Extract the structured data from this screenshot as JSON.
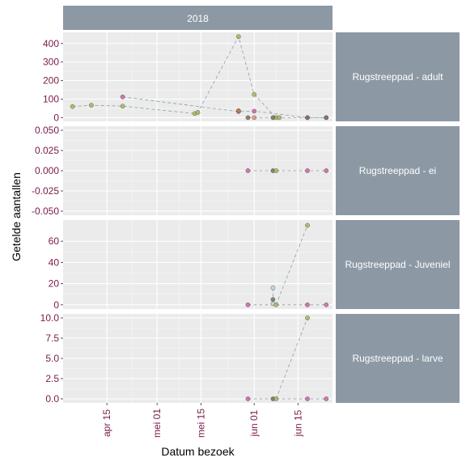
{
  "chart_data": {
    "type": "scatter",
    "facet_col_label": "2018",
    "xlabel": "Datum bezoek",
    "ylabel": "Getelde aantallen",
    "x_ticks": [
      {
        "date": "2018-04-15",
        "label": "apr 15"
      },
      {
        "date": "2018-05-01",
        "label": "mei 01"
      },
      {
        "date": "2018-05-15",
        "label": "mei 15"
      },
      {
        "date": "2018-06-01",
        "label": "jun 01"
      },
      {
        "date": "2018-06-15",
        "label": "jun 15"
      }
    ],
    "xlim": [
      "2018-04-01",
      "2018-06-26"
    ],
    "panels": [
      {
        "label": "Rugstreeppad - adult",
        "ylim": [
          -20,
          460
        ],
        "y_ticks": [
          {
            "v": 0,
            "label": "0"
          },
          {
            "v": 100,
            "label": "100"
          },
          {
            "v": 200,
            "label": "200"
          },
          {
            "v": 300,
            "label": "300"
          },
          {
            "v": 400,
            "label": "400"
          }
        ],
        "series": [
          {
            "color": "#a8b84f",
            "points": [
              [
                "2018-04-04",
                60
              ],
              [
                "2018-04-10",
                67
              ],
              [
                "2018-04-20",
                62
              ],
              [
                "2018-05-13",
                22
              ],
              [
                "2018-05-14",
                28
              ],
              [
                "2018-05-27",
                437
              ],
              [
                "2018-06-01",
                125
              ],
              [
                "2018-06-08",
                0
              ],
              [
                "2018-06-09",
                0
              ]
            ]
          },
          {
            "color": "#d45fa8",
            "points": [
              [
                "2018-04-20",
                112
              ],
              [
                "2018-05-27",
                33
              ],
              [
                "2018-06-01",
                35
              ],
              [
                "2018-06-18",
                0
              ],
              [
                "2018-06-24",
                0
              ]
            ]
          },
          {
            "color": "#c07a45",
            "points": [
              [
                "2018-05-27",
                38
              ]
            ]
          },
          {
            "color": "#e8906e",
            "points": [
              [
                "2018-06-01",
                0
              ]
            ]
          },
          {
            "color": "#7a6f66",
            "points": [
              [
                "2018-05-30",
                0
              ],
              [
                "2018-06-07",
                0
              ],
              [
                "2018-06-18",
                0
              ],
              [
                "2018-06-24",
                0
              ]
            ]
          }
        ]
      },
      {
        "label": "Rugstreeppad - ei",
        "ylim": [
          -0.055,
          0.055
        ],
        "y_ticks": [
          {
            "v": -0.05,
            "label": "-0.050"
          },
          {
            "v": -0.025,
            "label": "-0.025"
          },
          {
            "v": 0,
            "label": "0.000"
          },
          {
            "v": 0.025,
            "label": "0.025"
          },
          {
            "v": 0.05,
            "label": "0.050"
          }
        ],
        "series": [
          {
            "color": "#d45fa8",
            "points": [
              [
                "2018-05-30",
                0
              ],
              [
                "2018-06-18",
                0
              ],
              [
                "2018-06-24",
                0
              ]
            ]
          },
          {
            "color": "#7a6f66",
            "points": [
              [
                "2018-06-07",
                0
              ]
            ]
          },
          {
            "color": "#a8b84f",
            "points": [
              [
                "2018-06-08",
                0
              ]
            ]
          }
        ]
      },
      {
        "label": "Rugstreeppad - Juveniel",
        "ylim": [
          -4,
          80
        ],
        "y_ticks": [
          {
            "v": 0,
            "label": "0"
          },
          {
            "v": 20,
            "label": "20"
          },
          {
            "v": 40,
            "label": "40"
          },
          {
            "v": 60,
            "label": "60"
          }
        ],
        "series": [
          {
            "color": "#d45fa8",
            "points": [
              [
                "2018-05-30",
                0
              ],
              [
                "2018-06-18",
                0
              ],
              [
                "2018-06-24",
                0
              ]
            ]
          },
          {
            "color": "#b8ddd6",
            "points": [
              [
                "2018-06-07",
                16
              ],
              [
                "2018-06-07",
                1
              ]
            ]
          },
          {
            "color": "#7a6f66",
            "points": [
              [
                "2018-06-07",
                5
              ]
            ]
          },
          {
            "color": "#a8b84f",
            "points": [
              [
                "2018-06-08",
                0
              ],
              [
                "2018-06-18",
                75
              ]
            ]
          }
        ]
      },
      {
        "label": "Rugstreeppad - larve",
        "ylim": [
          -0.5,
          10.5
        ],
        "y_ticks": [
          {
            "v": 0,
            "label": "0.0"
          },
          {
            "v": 2.5,
            "label": "2.5"
          },
          {
            "v": 5,
            "label": "5.0"
          },
          {
            "v": 7.5,
            "label": "7.5"
          },
          {
            "v": 10,
            "label": "10.0"
          }
        ],
        "series": [
          {
            "color": "#d45fa8",
            "points": [
              [
                "2018-05-30",
                0
              ],
              [
                "2018-06-18",
                0
              ],
              [
                "2018-06-24",
                0
              ]
            ]
          },
          {
            "color": "#7a6f66",
            "points": [
              [
                "2018-06-07",
                0
              ]
            ]
          },
          {
            "color": "#a8b84f",
            "points": [
              [
                "2018-06-08",
                0
              ],
              [
                "2018-06-18",
                10
              ]
            ]
          }
        ]
      }
    ]
  }
}
